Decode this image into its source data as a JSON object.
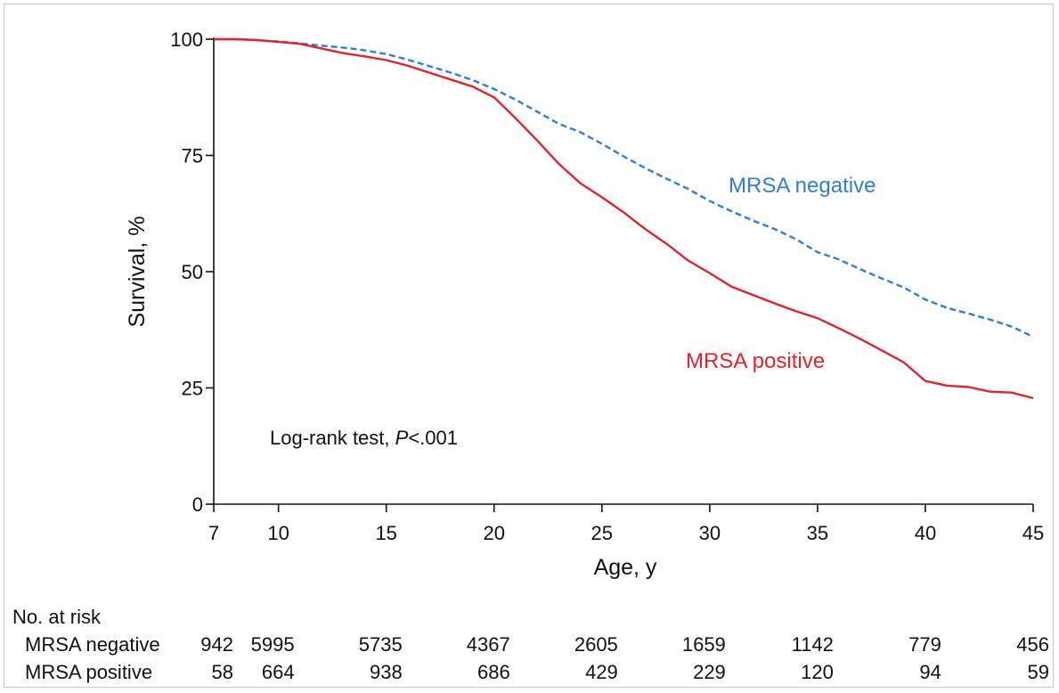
{
  "chart_data": {
    "type": "line",
    "xlabel": "Age, y",
    "ylabel": "Survival, %",
    "xlim": [
      7,
      45
    ],
    "ylim": [
      0,
      100
    ],
    "xticks": [
      7,
      10,
      15,
      20,
      25,
      30,
      35,
      40,
      45
    ],
    "yticks": [
      0,
      25,
      50,
      75,
      100
    ],
    "grid": false,
    "annotation_prefix": "Log-rank test, ",
    "annotation_p": "P",
    "annotation_suffix": "<.001",
    "series": [
      {
        "name": "MRSA negative",
        "color": "#2f7fd9",
        "style": "dashed",
        "x": [
          7,
          8,
          9,
          10,
          11,
          12,
          13,
          14,
          15,
          16,
          17,
          18,
          19,
          20,
          21,
          22,
          23,
          24,
          25,
          26,
          27,
          28,
          29,
          30,
          31,
          32,
          33,
          34,
          35,
          36,
          37,
          38,
          39,
          40,
          41,
          42,
          43,
          44,
          45
        ],
        "y": [
          100,
          100,
          99.8,
          99.5,
          99.1,
          98.6,
          98.2,
          97.6,
          96.8,
          95.6,
          94.2,
          92.8,
          91.2,
          89.3,
          87,
          84.4,
          81.8,
          80,
          77.5,
          74.8,
          72.3,
          70,
          67.8,
          65.2,
          63,
          61,
          59.2,
          57,
          54.2,
          52.6,
          50.5,
          48.5,
          46.6,
          44,
          42.2,
          41,
          39.7,
          38.2,
          36
        ]
      },
      {
        "name": "MRSA positive",
        "color": "#e0242b",
        "style": "solid",
        "x": [
          7,
          8,
          9,
          10,
          11,
          12,
          13,
          14,
          15,
          16,
          17,
          18,
          19,
          20,
          21,
          22,
          23,
          24,
          25,
          26,
          27,
          28,
          29,
          30,
          31,
          32,
          33,
          34,
          35,
          36,
          37,
          38,
          39,
          40,
          41,
          42,
          43,
          44,
          45
        ],
        "y": [
          100,
          100,
          99.8,
          99.4,
          99,
          98,
          97,
          96.3,
          95.5,
          94.3,
          92.8,
          91.3,
          89.8,
          87.5,
          83,
          78.2,
          73.2,
          69,
          66,
          62.8,
          59.2,
          56,
          52.4,
          49.7,
          46.8,
          45,
          43.2,
          41.5,
          40,
          37.8,
          35.5,
          33,
          30.5,
          26.5,
          25.5,
          25.2,
          24.2,
          24,
          22.8
        ]
      }
    ],
    "at_risk": {
      "title": "No. at risk",
      "x": [
        7,
        10,
        15,
        20,
        25,
        30,
        35,
        40,
        45
      ],
      "rows": [
        {
          "label": "MRSA negative",
          "values": [
            "942",
            "5995",
            "5735",
            "4367",
            "2605",
            "1659",
            "1142",
            "779",
            "456"
          ]
        },
        {
          "label": "MRSA positive",
          "values": [
            "58",
            "664",
            "938",
            "686",
            "429",
            "229",
            "120",
            "94",
            "59"
          ]
        }
      ]
    }
  }
}
